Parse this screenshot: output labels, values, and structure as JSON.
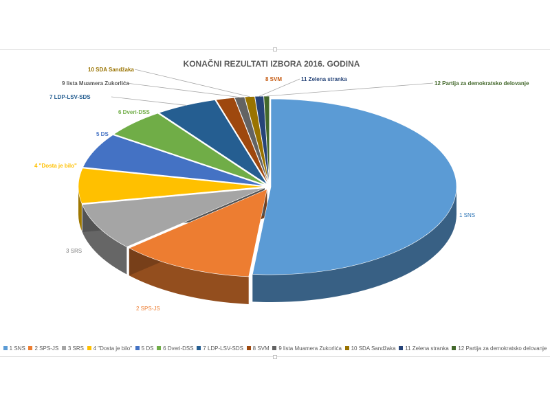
{
  "chart_data": {
    "type": "pie",
    "title": "KONAČNI REZULTATI IZBORA 2016. GODINA",
    "style": "3d-exploded-pie",
    "legend_position": "bottom",
    "series": [
      {
        "label": "1  SNS",
        "value": 48.3,
        "color": "#5b9bd5"
      },
      {
        "label": "2 SPS-JS",
        "value": 11.0,
        "color": "#ed7d31"
      },
      {
        "label": "3 SRS",
        "value": 8.1,
        "color": "#a5a5a5"
      },
      {
        "label": "4  \"Dosta je bilo\"",
        "value": 6.0,
        "color": "#ffc000"
      },
      {
        "label": "5 DS",
        "value": 6.0,
        "color": "#4472c4"
      },
      {
        "label": "6   Dveri-DSS",
        "value": 5.0,
        "color": "#70ad47"
      },
      {
        "label": "7 LDP-LSV-SDS",
        "value": 5.0,
        "color": "#255e91"
      },
      {
        "label": "8 SVM",
        "value": 1.5,
        "color": "#9e480e"
      },
      {
        "label": "9  lista Muamera Zukorlića",
        "value": 0.8,
        "color": "#636363"
      },
      {
        "label": "10  SDA Sandžaka",
        "value": 0.8,
        "color": "#997300"
      },
      {
        "label": "11 Zelena stranka",
        "value": 0.7,
        "color": "#264478"
      },
      {
        "label": "12  Partija za demokratsko delovanje",
        "value": 0.45,
        "color": "#43682b"
      }
    ]
  },
  "legend": {
    "items": [
      "1  SNS",
      "2 SPS-JS",
      "3 SRS",
      "4  \"Dosta je bilo\"",
      "5 DS",
      "6   Dveri-DSS",
      "7 LDP-LSV-SDS",
      "8 SVM",
      "9  lista Muamera Zukorlića",
      "10  SDA Sandžaka",
      "11 Zelena stranka",
      "12  Partija za demokratsko delovanje"
    ]
  }
}
